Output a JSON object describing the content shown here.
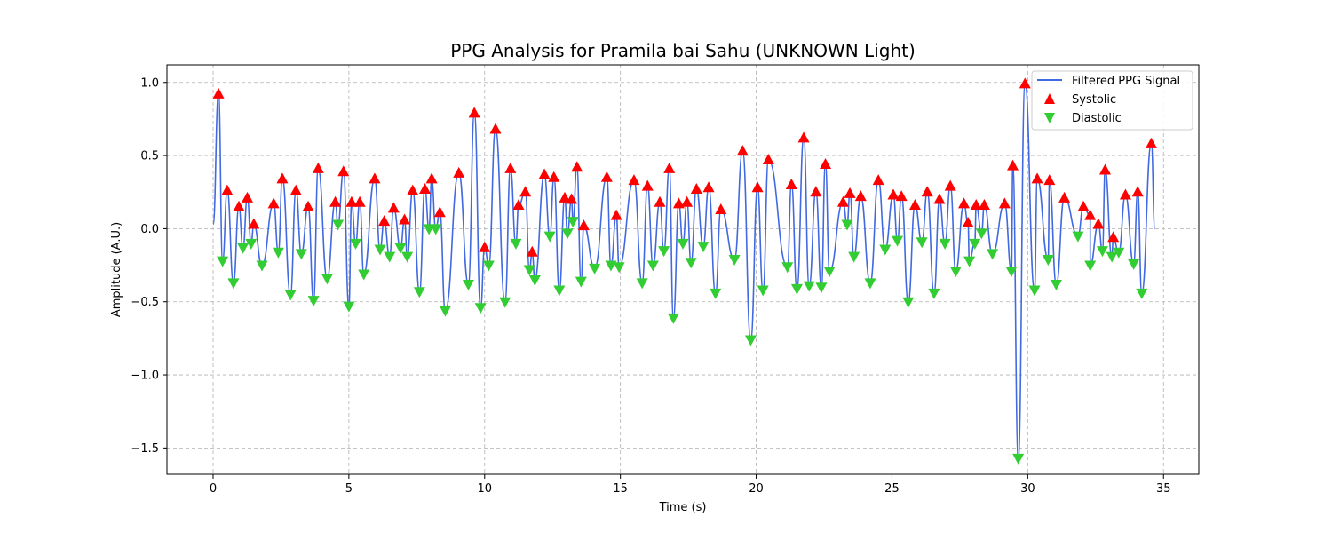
{
  "chart_data": {
    "type": "line",
    "title": "PPG Analysis for Pramila bai Sahu (UNKNOWN Light)",
    "xlabel": "Time (s)",
    "ylabel": "Amplitude (A.U.)",
    "xlim": [
      -1.7,
      36.3
    ],
    "ylim": [
      -1.68,
      1.12
    ],
    "x_ticks": [
      0,
      5,
      10,
      15,
      20,
      25,
      30,
      35
    ],
    "y_ticks": [
      1.0,
      0.5,
      0.0,
      -0.5,
      -1.0,
      -1.5
    ],
    "y_tick_labels": [
      "1.0",
      "0.5",
      "0.0",
      "−0.5",
      "−1.0",
      "−1.5"
    ],
    "grid": true,
    "legend_position": "top-right",
    "colors": {
      "signal": "#4169e1",
      "systolic": "#ff0000",
      "diastolic": "#32cd32"
    },
    "series": [
      {
        "name": "Filtered PPG Signal",
        "kind": "line"
      },
      {
        "name": "Systolic",
        "kind": "marker-up"
      },
      {
        "name": "Diastolic",
        "kind": "marker-down"
      }
    ],
    "systolic": [
      [
        0.2,
        0.92
      ],
      [
        0.52,
        0.26
      ],
      [
        0.95,
        0.15
      ],
      [
        1.26,
        0.21
      ],
      [
        1.5,
        0.03
      ],
      [
        2.23,
        0.17
      ],
      [
        2.55,
        0.34
      ],
      [
        3.05,
        0.26
      ],
      [
        3.5,
        0.15
      ],
      [
        3.87,
        0.41
      ],
      [
        4.5,
        0.18
      ],
      [
        4.8,
        0.39
      ],
      [
        5.1,
        0.18
      ],
      [
        5.4,
        0.18
      ],
      [
        5.95,
        0.34
      ],
      [
        6.3,
        0.05
      ],
      [
        6.65,
        0.14
      ],
      [
        7.05,
        0.06
      ],
      [
        7.35,
        0.26
      ],
      [
        7.8,
        0.27
      ],
      [
        8.05,
        0.34
      ],
      [
        8.35,
        0.11
      ],
      [
        9.05,
        0.38
      ],
      [
        9.62,
        0.79
      ],
      [
        10.0,
        -0.13
      ],
      [
        10.4,
        0.68
      ],
      [
        10.95,
        0.41
      ],
      [
        11.25,
        0.16
      ],
      [
        11.5,
        0.25
      ],
      [
        11.75,
        -0.16
      ],
      [
        12.2,
        0.37
      ],
      [
        12.55,
        0.35
      ],
      [
        12.95,
        0.21
      ],
      [
        13.2,
        0.2
      ],
      [
        13.4,
        0.42
      ],
      [
        13.65,
        0.02
      ],
      [
        14.5,
        0.35
      ],
      [
        14.85,
        0.09
      ],
      [
        15.5,
        0.33
      ],
      [
        16.0,
        0.29
      ],
      [
        16.45,
        0.18
      ],
      [
        16.8,
        0.41
      ],
      [
        17.15,
        0.17
      ],
      [
        17.45,
        0.18
      ],
      [
        17.8,
        0.27
      ],
      [
        18.25,
        0.28
      ],
      [
        18.7,
        0.13
      ],
      [
        19.5,
        0.53
      ],
      [
        20.05,
        0.28
      ],
      [
        20.45,
        0.47
      ],
      [
        21.3,
        0.3
      ],
      [
        21.75,
        0.62
      ],
      [
        22.2,
        0.25
      ],
      [
        22.55,
        0.44
      ],
      [
        23.2,
        0.18
      ],
      [
        23.45,
        0.24
      ],
      [
        23.85,
        0.22
      ],
      [
        24.5,
        0.33
      ],
      [
        25.05,
        0.23
      ],
      [
        25.35,
        0.22
      ],
      [
        25.85,
        0.16
      ],
      [
        26.3,
        0.25
      ],
      [
        26.75,
        0.2
      ],
      [
        27.15,
        0.29
      ],
      [
        27.65,
        0.17
      ],
      [
        27.8,
        0.04
      ],
      [
        28.1,
        0.16
      ],
      [
        28.4,
        0.16
      ],
      [
        29.15,
        0.17
      ],
      [
        29.45,
        0.43
      ],
      [
        29.9,
        0.99
      ],
      [
        30.35,
        0.34
      ],
      [
        30.8,
        0.33
      ],
      [
        31.35,
        0.21
      ],
      [
        32.05,
        0.15
      ],
      [
        32.3,
        0.09
      ],
      [
        32.6,
        0.03
      ],
      [
        32.85,
        0.4
      ],
      [
        33.15,
        -0.06
      ],
      [
        33.6,
        0.23
      ],
      [
        34.05,
        0.25
      ],
      [
        34.55,
        0.58
      ]
    ],
    "diastolic": [
      [
        0.35,
        -0.22
      ],
      [
        0.75,
        -0.37
      ],
      [
        1.1,
        -0.13
      ],
      [
        1.4,
        -0.1
      ],
      [
        1.8,
        -0.25
      ],
      [
        2.4,
        -0.16
      ],
      [
        2.85,
        -0.45
      ],
      [
        3.25,
        -0.17
      ],
      [
        3.7,
        -0.49
      ],
      [
        4.2,
        -0.34
      ],
      [
        4.6,
        0.03
      ],
      [
        5.0,
        -0.53
      ],
      [
        5.25,
        -0.1
      ],
      [
        5.55,
        -0.31
      ],
      [
        6.15,
        -0.14
      ],
      [
        6.5,
        -0.19
      ],
      [
        6.9,
        -0.13
      ],
      [
        7.15,
        -0.19
      ],
      [
        7.6,
        -0.43
      ],
      [
        7.95,
        0.0
      ],
      [
        8.2,
        0.0
      ],
      [
        8.55,
        -0.56
      ],
      [
        9.4,
        -0.38
      ],
      [
        9.85,
        -0.54
      ],
      [
        10.15,
        -0.25
      ],
      [
        10.75,
        -0.5
      ],
      [
        11.15,
        -0.1
      ],
      [
        11.65,
        -0.28
      ],
      [
        11.85,
        -0.35
      ],
      [
        12.4,
        -0.05
      ],
      [
        12.75,
        -0.42
      ],
      [
        13.05,
        -0.03
      ],
      [
        13.25,
        0.05
      ],
      [
        13.55,
        -0.36
      ],
      [
        14.05,
        -0.27
      ],
      [
        14.65,
        -0.25
      ],
      [
        14.95,
        -0.26
      ],
      [
        15.8,
        -0.37
      ],
      [
        16.2,
        -0.25
      ],
      [
        16.6,
        -0.15
      ],
      [
        16.95,
        -0.61
      ],
      [
        17.3,
        -0.1
      ],
      [
        17.6,
        -0.23
      ],
      [
        18.05,
        -0.12
      ],
      [
        18.5,
        -0.44
      ],
      [
        19.2,
        -0.21
      ],
      [
        19.8,
        -0.76
      ],
      [
        20.25,
        -0.42
      ],
      [
        21.15,
        -0.26
      ],
      [
        21.5,
        -0.41
      ],
      [
        21.95,
        -0.39
      ],
      [
        22.4,
        -0.4
      ],
      [
        22.7,
        -0.29
      ],
      [
        23.35,
        0.03
      ],
      [
        23.6,
        -0.19
      ],
      [
        24.2,
        -0.37
      ],
      [
        24.75,
        -0.14
      ],
      [
        25.2,
        -0.08
      ],
      [
        25.6,
        -0.5
      ],
      [
        26.1,
        -0.09
      ],
      [
        26.55,
        -0.44
      ],
      [
        26.95,
        -0.1
      ],
      [
        27.35,
        -0.29
      ],
      [
        27.85,
        -0.22
      ],
      [
        28.05,
        -0.1
      ],
      [
        28.3,
        -0.03
      ],
      [
        28.7,
        -0.17
      ],
      [
        29.4,
        -0.29
      ],
      [
        29.65,
        -1.57
      ],
      [
        30.25,
        -0.42
      ],
      [
        30.75,
        -0.21
      ],
      [
        31.05,
        -0.38
      ],
      [
        31.85,
        -0.05
      ],
      [
        32.3,
        -0.25
      ],
      [
        32.75,
        -0.15
      ],
      [
        33.1,
        -0.19
      ],
      [
        33.35,
        -0.16
      ],
      [
        33.9,
        -0.24
      ],
      [
        34.2,
        -0.44
      ]
    ]
  }
}
